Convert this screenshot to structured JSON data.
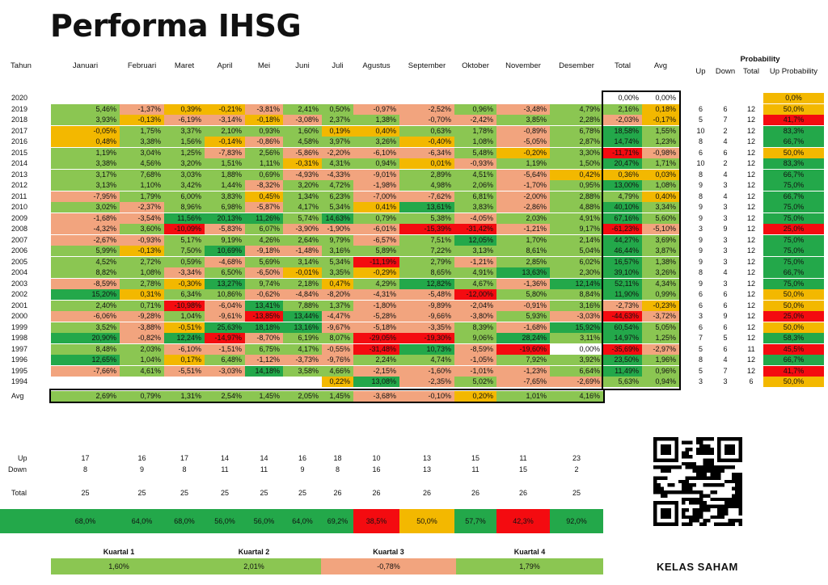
{
  "title": "Performa IHSG",
  "colors": {
    "dg": "#23a84a",
    "lg": "#8bc652",
    "or": "#f3b800",
    "sa": "#f2a47e",
    "rd": "#f40b10",
    "wh": "#ffffff"
  },
  "headers": {
    "year": "Tahun",
    "months": [
      "Januari",
      "Februari",
      "Maret",
      "April",
      "Mei",
      "Juni",
      "Juli",
      "Agustus",
      "September",
      "Oktober",
      "November",
      "Desember"
    ],
    "total": "Total",
    "avg": "Avg",
    "probability": "Probability",
    "up": "Up",
    "down": "Down",
    "ptotal": "Total",
    "upprob": "Up Probability"
  },
  "rows": [
    {
      "year": "2020",
      "m": [
        "",
        "",
        "",
        "",
        "",
        "",
        "",
        "",
        "",
        "",
        "",
        ""
      ],
      "c": [
        "",
        "",
        "",
        "",
        "",
        "",
        "",
        "",
        "",
        "",
        "",
        ""
      ],
      "total": "0,00%",
      "tc": "wh",
      "avg": "0,00%",
      "ac": "wh",
      "up": "",
      "down": "",
      "pt": "",
      "prob": "0,0%",
      "pc": "or"
    },
    {
      "year": "2019",
      "m": [
        "5,46%",
        "-1,37%",
        "0,39%",
        "-0,21%",
        "-3,81%",
        "2,41%",
        "0,50%",
        "-0,97%",
        "-2,52%",
        "0,96%",
        "-3,48%",
        "4,79%"
      ],
      "c": [
        "lg",
        "sa",
        "or",
        "or",
        "sa",
        "lg",
        "lg",
        "sa",
        "sa",
        "lg",
        "sa",
        "lg"
      ],
      "total": "2,16%",
      "tc": "lg",
      "avg": "0,18%",
      "ac": "or",
      "up": "6",
      "down": "6",
      "pt": "12",
      "prob": "50,0%",
      "pc": "or"
    },
    {
      "year": "2018",
      "m": [
        "3,93%",
        "-0,13%",
        "-6,19%",
        "-3,14%",
        "-0,18%",
        "-3,08%",
        "2,37%",
        "1,38%",
        "-0,70%",
        "-2,42%",
        "3,85%",
        "2,28%"
      ],
      "c": [
        "lg",
        "or",
        "sa",
        "sa",
        "or",
        "sa",
        "lg",
        "lg",
        "sa",
        "sa",
        "lg",
        "lg"
      ],
      "total": "-2,03%",
      "tc": "sa",
      "avg": "-0,17%",
      "ac": "or",
      "up": "5",
      "down": "7",
      "pt": "12",
      "prob": "41,7%",
      "pc": "rd"
    },
    {
      "year": "2017",
      "m": [
        "-0,05%",
        "1,75%",
        "3,37%",
        "2,10%",
        "0,93%",
        "1,60%",
        "0,19%",
        "0,40%",
        "0,63%",
        "1,78%",
        "-0,89%",
        "6,78%"
      ],
      "c": [
        "or",
        "lg",
        "lg",
        "lg",
        "lg",
        "lg",
        "or",
        "or",
        "lg",
        "lg",
        "sa",
        "lg"
      ],
      "total": "18,58%",
      "tc": "dg",
      "avg": "1,55%",
      "ac": "lg",
      "up": "10",
      "down": "2",
      "pt": "12",
      "prob": "83,3%",
      "pc": "dg"
    },
    {
      "year": "2016",
      "m": [
        "0,48%",
        "3,38%",
        "1,56%",
        "-0,14%",
        "-0,86%",
        "4,58%",
        "3,97%",
        "3,26%",
        "-0,40%",
        "1,08%",
        "-5,05%",
        "2,87%"
      ],
      "c": [
        "or",
        "lg",
        "lg",
        "or",
        "sa",
        "lg",
        "lg",
        "lg",
        "or",
        "lg",
        "sa",
        "lg"
      ],
      "total": "14,74%",
      "tc": "dg",
      "avg": "1,23%",
      "ac": "lg",
      "up": "8",
      "down": "4",
      "pt": "12",
      "prob": "66,7%",
      "pc": "dg"
    },
    {
      "year": "2015",
      "m": [
        "1,19%",
        "3,04%",
        "1,25%",
        "-7,83%",
        "2,56%",
        "-5,86%",
        "-2,20%",
        "-6,10%",
        "-6,34%",
        "5,48%",
        "-0,20%",
        "3,30%"
      ],
      "c": [
        "lg",
        "lg",
        "lg",
        "sa",
        "lg",
        "sa",
        "sa",
        "sa",
        "sa",
        "lg",
        "or",
        "lg"
      ],
      "total": "-11,71%",
      "tc": "rd",
      "avg": "-0,98%",
      "ac": "sa",
      "up": "6",
      "down": "6",
      "pt": "12",
      "prob": "50,0%",
      "pc": "or"
    },
    {
      "year": "2014",
      "m": [
        "3,38%",
        "4,56%",
        "3,20%",
        "1,51%",
        "1,11%",
        "-0,31%",
        "4,31%",
        "0,94%",
        "0,01%",
        "-0,93%",
        "1,19%",
        "1,50%"
      ],
      "c": [
        "lg",
        "lg",
        "lg",
        "lg",
        "lg",
        "or",
        "lg",
        "lg",
        "or",
        "sa",
        "lg",
        "lg"
      ],
      "total": "20,47%",
      "tc": "dg",
      "avg": "1,71%",
      "ac": "lg",
      "up": "10",
      "down": "2",
      "pt": "12",
      "prob": "83,3%",
      "pc": "dg"
    },
    {
      "year": "2013",
      "m": [
        "3,17%",
        "7,68%",
        "3,03%",
        "1,88%",
        "0,69%",
        "-4,93%",
        "-4,33%",
        "-9,01%",
        "2,89%",
        "4,51%",
        "-5,64%",
        "0,42%"
      ],
      "c": [
        "lg",
        "lg",
        "lg",
        "lg",
        "lg",
        "sa",
        "sa",
        "sa",
        "lg",
        "lg",
        "sa",
        "or"
      ],
      "total": "0,36%",
      "tc": "or",
      "avg": "0,03%",
      "ac": "or",
      "up": "8",
      "down": "4",
      "pt": "12",
      "prob": "66,7%",
      "pc": "dg"
    },
    {
      "year": "2012",
      "m": [
        "3,13%",
        "1,10%",
        "3,42%",
        "1,44%",
        "-8,32%",
        "3,20%",
        "4,72%",
        "-1,98%",
        "4,98%",
        "2,06%",
        "-1,70%",
        "0,95%"
      ],
      "c": [
        "lg",
        "lg",
        "lg",
        "lg",
        "sa",
        "lg",
        "lg",
        "sa",
        "lg",
        "lg",
        "sa",
        "lg"
      ],
      "total": "13,00%",
      "tc": "dg",
      "avg": "1,08%",
      "ac": "lg",
      "up": "9",
      "down": "3",
      "pt": "12",
      "prob": "75,0%",
      "pc": "dg"
    },
    {
      "year": "2011",
      "m": [
        "-7,95%",
        "1,79%",
        "6,00%",
        "3,83%",
        "0,45%",
        "1,34%",
        "6,23%",
        "-7,00%",
        "-7,62%",
        "6,81%",
        "-2,00%",
        "2,88%"
      ],
      "c": [
        "sa",
        "lg",
        "lg",
        "lg",
        "or",
        "lg",
        "lg",
        "sa",
        "sa",
        "lg",
        "sa",
        "lg"
      ],
      "total": "4,79%",
      "tc": "lg",
      "avg": "0,40%",
      "ac": "or",
      "up": "8",
      "down": "4",
      "pt": "12",
      "prob": "66,7%",
      "pc": "dg"
    },
    {
      "year": "2010",
      "m": [
        "3,02%",
        "-2,37%",
        "8,96%",
        "6,98%",
        "-5,87%",
        "4,17%",
        "5,34%",
        "0,41%",
        "13,61%",
        "3,83%",
        "-2,86%",
        "4,88%"
      ],
      "c": [
        "lg",
        "sa",
        "lg",
        "lg",
        "sa",
        "lg",
        "lg",
        "or",
        "dg",
        "lg",
        "sa",
        "lg"
      ],
      "total": "40,10%",
      "tc": "dg",
      "avg": "3,34%",
      "ac": "lg",
      "up": "9",
      "down": "3",
      "pt": "12",
      "prob": "75,0%",
      "pc": "dg"
    },
    {
      "year": "2009",
      "m": [
        "-1,68%",
        "-3,54%",
        "11,56%",
        "20,13%",
        "11,26%",
        "5,74%",
        "14,63%",
        "0,79%",
        "5,38%",
        "-4,05%",
        "2,03%",
        "4,91%"
      ],
      "c": [
        "sa",
        "sa",
        "dg",
        "dg",
        "dg",
        "lg",
        "dg",
        "lg",
        "lg",
        "sa",
        "lg",
        "lg"
      ],
      "total": "67,16%",
      "tc": "dg",
      "avg": "5,60%",
      "ac": "lg",
      "up": "9",
      "down": "3",
      "pt": "12",
      "prob": "75,0%",
      "pc": "dg"
    },
    {
      "year": "2008",
      "m": [
        "-4,32%",
        "3,60%",
        "-10,09%",
        "-5,83%",
        "6,07%",
        "-3,90%",
        "-1,90%",
        "-6,01%",
        "-15,39%",
        "-31,42%",
        "-1,21%",
        "9,17%"
      ],
      "c": [
        "sa",
        "lg",
        "rd",
        "sa",
        "lg",
        "sa",
        "sa",
        "sa",
        "rd",
        "rd",
        "sa",
        "lg"
      ],
      "total": "-61,23%",
      "tc": "rd",
      "avg": "-5,10%",
      "ac": "sa",
      "up": "3",
      "down": "9",
      "pt": "12",
      "prob": "25,0%",
      "pc": "rd"
    },
    {
      "year": "2007",
      "m": [
        "-2,67%",
        "-0,93%",
        "5,17%",
        "9,19%",
        "4,26%",
        "2,64%",
        "9,79%",
        "-6,57%",
        "7,51%",
        "12,05%",
        "1,70%",
        "2,14%"
      ],
      "c": [
        "sa",
        "sa",
        "lg",
        "lg",
        "lg",
        "lg",
        "lg",
        "sa",
        "lg",
        "dg",
        "lg",
        "lg"
      ],
      "total": "44,27%",
      "tc": "dg",
      "avg": "3,69%",
      "ac": "lg",
      "up": "9",
      "down": "3",
      "pt": "12",
      "prob": "75,0%",
      "pc": "dg"
    },
    {
      "year": "2006",
      "m": [
        "5,99%",
        "-0,13%",
        "7,50%",
        "10,69%",
        "-9,18%",
        "-1,48%",
        "3,16%",
        "5,89%",
        "7,22%",
        "3,13%",
        "8,61%",
        "5,04%"
      ],
      "c": [
        "lg",
        "or",
        "lg",
        "dg",
        "sa",
        "sa",
        "lg",
        "lg",
        "lg",
        "lg",
        "lg",
        "lg"
      ],
      "total": "46,44%",
      "tc": "dg",
      "avg": "3,87%",
      "ac": "lg",
      "up": "9",
      "down": "3",
      "pt": "12",
      "prob": "75,0%",
      "pc": "dg"
    },
    {
      "year": "2005",
      "m": [
        "4,52%",
        "2,72%",
        "0,59%",
        "-4,68%",
        "5,69%",
        "3,14%",
        "5,34%",
        "-11,19%",
        "2,79%",
        "-1,21%",
        "2,85%",
        "6,02%"
      ],
      "c": [
        "lg",
        "lg",
        "lg",
        "sa",
        "lg",
        "lg",
        "lg",
        "rd",
        "lg",
        "sa",
        "lg",
        "lg"
      ],
      "total": "16,57%",
      "tc": "dg",
      "avg": "1,38%",
      "ac": "lg",
      "up": "9",
      "down": "3",
      "pt": "12",
      "prob": "75,0%",
      "pc": "dg"
    },
    {
      "year": "2004",
      "m": [
        "8,82%",
        "1,08%",
        "-3,34%",
        "6,50%",
        "-6,50%",
        "-0,01%",
        "3,35%",
        "-0,29%",
        "8,65%",
        "4,91%",
        "13,63%",
        "2,30%"
      ],
      "c": [
        "lg",
        "lg",
        "sa",
        "lg",
        "sa",
        "or",
        "lg",
        "or",
        "lg",
        "lg",
        "dg",
        "lg"
      ],
      "total": "39,10%",
      "tc": "dg",
      "avg": "3,26%",
      "ac": "lg",
      "up": "8",
      "down": "4",
      "pt": "12",
      "prob": "66,7%",
      "pc": "dg"
    },
    {
      "year": "2003",
      "m": [
        "-8,59%",
        "2,78%",
        "-0,30%",
        "13,27%",
        "9,74%",
        "2,18%",
        "0,47%",
        "4,29%",
        "12,82%",
        "4,67%",
        "-1,36%",
        "12,14%"
      ],
      "c": [
        "sa",
        "lg",
        "or",
        "dg",
        "lg",
        "lg",
        "or",
        "lg",
        "dg",
        "lg",
        "sa",
        "dg"
      ],
      "total": "52,11%",
      "tc": "dg",
      "avg": "4,34%",
      "ac": "lg",
      "up": "9",
      "down": "3",
      "pt": "12",
      "prob": "75,0%",
      "pc": "dg"
    },
    {
      "year": "2002",
      "m": [
        "15,20%",
        "0,31%",
        "6,34%",
        "10,86%",
        "-0,62%",
        "-4,84%",
        "-8,20%",
        "-4,31%",
        "-5,48%",
        "-12,00%",
        "5,80%",
        "8,84%"
      ],
      "c": [
        "dg",
        "or",
        "lg",
        "lg",
        "sa",
        "sa",
        "sa",
        "sa",
        "sa",
        "rd",
        "lg",
        "lg"
      ],
      "total": "11,90%",
      "tc": "dg",
      "avg": "0,99%",
      "ac": "lg",
      "up": "6",
      "down": "6",
      "pt": "12",
      "prob": "50,0%",
      "pc": "or"
    },
    {
      "year": "2001",
      "m": [
        "2,40%",
        "0,71%",
        "-10,98%",
        "-6,04%",
        "13,41%",
        "7,88%",
        "1,37%",
        "-1,80%",
        "-9,89%",
        "-2,04%",
        "-0,91%",
        "3,16%"
      ],
      "c": [
        "lg",
        "lg",
        "rd",
        "sa",
        "dg",
        "lg",
        "lg",
        "sa",
        "sa",
        "sa",
        "sa",
        "lg"
      ],
      "total": "-2,73%",
      "tc": "sa",
      "avg": "-0,23%",
      "ac": "or",
      "up": "6",
      "down": "6",
      "pt": "12",
      "prob": "50,0%",
      "pc": "or"
    },
    {
      "year": "2000",
      "m": [
        "-6,06%",
        "-9,28%",
        "1,04%",
        "-9,61%",
        "-13,85%",
        "13,44%",
        "-4,47%",
        "-5,28%",
        "-9,66%",
        "-3,80%",
        "5,93%",
        "-3,03%"
      ],
      "c": [
        "sa",
        "sa",
        "lg",
        "sa",
        "rd",
        "dg",
        "sa",
        "sa",
        "sa",
        "sa",
        "lg",
        "sa"
      ],
      "total": "-44,63%",
      "tc": "rd",
      "avg": "-3,72%",
      "ac": "sa",
      "up": "3",
      "down": "9",
      "pt": "12",
      "prob": "25,0%",
      "pc": "rd"
    },
    {
      "year": "1999",
      "m": [
        "3,52%",
        "-3,88%",
        "-0,51%",
        "25,63%",
        "18,18%",
        "13,16%",
        "-9,67%",
        "-5,18%",
        "-3,35%",
        "8,39%",
        "-1,68%",
        "15,92%"
      ],
      "c": [
        "lg",
        "sa",
        "or",
        "dg",
        "dg",
        "dg",
        "sa",
        "sa",
        "sa",
        "lg",
        "sa",
        "dg"
      ],
      "total": "60,54%",
      "tc": "dg",
      "avg": "5,05%",
      "ac": "lg",
      "up": "6",
      "down": "6",
      "pt": "12",
      "prob": "50,0%",
      "pc": "or"
    },
    {
      "year": "1998",
      "m": [
        "20,90%",
        "-0,82%",
        "12,24%",
        "-14,97%",
        "-8,70%",
        "6,19%",
        "8,07%",
        "-29,05%",
        "-19,30%",
        "9,06%",
        "28,24%",
        "3,11%"
      ],
      "c": [
        "dg",
        "sa",
        "dg",
        "rd",
        "sa",
        "lg",
        "lg",
        "rd",
        "rd",
        "lg",
        "dg",
        "lg"
      ],
      "total": "14,97%",
      "tc": "dg",
      "avg": "1,25%",
      "ac": "lg",
      "up": "7",
      "down": "5",
      "pt": "12",
      "prob": "58,3%",
      "pc": "dg"
    },
    {
      "year": "1997",
      "m": [
        "8,48%",
        "2,03%",
        "-6,10%",
        "-1,51%",
        "6,75%",
        "4,17%",
        "-0,55%",
        "-31,48%",
        "10,73%",
        "-8,59%",
        "-19,60%",
        "0,00%"
      ],
      "c": [
        "lg",
        "lg",
        "sa",
        "sa",
        "lg",
        "lg",
        "sa",
        "rd",
        "dg",
        "sa",
        "rd",
        "wh"
      ],
      "total": "-35,69%",
      "tc": "rd",
      "avg": "-2,97%",
      "ac": "sa",
      "up": "5",
      "down": "6",
      "pt": "11",
      "prob": "45,5%",
      "pc": "rd"
    },
    {
      "year": "1996",
      "m": [
        "12,65%",
        "1,04%",
        "0,17%",
        "6,48%",
        "-1,12%",
        "-3,73%",
        "-9,76%",
        "2,24%",
        "4,74%",
        "-1,05%",
        "7,92%",
        "3,92%"
      ],
      "c": [
        "dg",
        "lg",
        "or",
        "lg",
        "sa",
        "sa",
        "sa",
        "lg",
        "lg",
        "sa",
        "lg",
        "lg"
      ],
      "total": "23,50%",
      "tc": "dg",
      "avg": "1,96%",
      "ac": "lg",
      "up": "8",
      "down": "4",
      "pt": "12",
      "prob": "66,7%",
      "pc": "dg"
    },
    {
      "year": "1995",
      "m": [
        "-7,66%",
        "4,61%",
        "-5,51%",
        "-3,03%",
        "14,18%",
        "3,58%",
        "4,66%",
        "-2,15%",
        "-1,60%",
        "-1,01%",
        "-1,23%",
        "6,64%"
      ],
      "c": [
        "sa",
        "lg",
        "sa",
        "sa",
        "dg",
        "lg",
        "lg",
        "sa",
        "sa",
        "sa",
        "sa",
        "lg"
      ],
      "total": "11,49%",
      "tc": "dg",
      "avg": "0,96%",
      "ac": "lg",
      "up": "5",
      "down": "7",
      "pt": "12",
      "prob": "41,7%",
      "pc": "rd"
    },
    {
      "year": "1994",
      "m": [
        "",
        "",
        "",
        "",
        "",
        "",
        "0,22%",
        "13,08%",
        "-2,35%",
        "5,02%",
        "-7,65%",
        "-2,69%"
      ],
      "c": [
        "",
        "",
        "",
        "",
        "",
        "",
        "or",
        "dg",
        "sa",
        "lg",
        "sa",
        "sa"
      ],
      "total": "5,63%",
      "tc": "lg",
      "avg": "0,94%",
      "ac": "lg",
      "up": "3",
      "down": "3",
      "pt": "6",
      "prob": "50,0%",
      "pc": "or"
    }
  ],
  "avgrow": {
    "label": "Avg",
    "m": [
      "2,69%",
      "0,79%",
      "1,31%",
      "2,54%",
      "1,45%",
      "2,05%",
      "1,45%",
      "-3,68%",
      "-0,10%",
      "0,20%",
      "1,01%",
      "4,16%"
    ],
    "c": [
      "lg",
      "lg",
      "lg",
      "lg",
      "lg",
      "lg",
      "lg",
      "sa",
      "sa",
      "or",
      "lg",
      "lg"
    ]
  },
  "summary": {
    "up_label": "Up",
    "down_label": "Down",
    "total_label": "Total",
    "prob_label": "Up Probability",
    "up": [
      "17",
      "16",
      "17",
      "14",
      "14",
      "16",
      "18",
      "10",
      "13",
      "15",
      "11",
      "23"
    ],
    "down": [
      "8",
      "9",
      "8",
      "11",
      "11",
      "9",
      "8",
      "16",
      "13",
      "11",
      "15",
      "2"
    ],
    "total": [
      "25",
      "25",
      "25",
      "25",
      "25",
      "25",
      "26",
      "26",
      "26",
      "26",
      "26",
      "25"
    ],
    "prob": [
      "68,0%",
      "64,0%",
      "68,0%",
      "56,0%",
      "56,0%",
      "64,0%",
      "69,2%",
      "38,5%",
      "50,0%",
      "57,7%",
      "42,3%",
      "92,0%"
    ],
    "prob_c": [
      "dg",
      "dg",
      "dg",
      "dg",
      "dg",
      "dg",
      "dg",
      "rd",
      "or",
      "dg",
      "rd",
      "dg"
    ]
  },
  "quarters": [
    {
      "label": "Kuartal 1",
      "value": "1,60%",
      "c": "lg"
    },
    {
      "label": "Kuartal 2",
      "value": "2,01%",
      "c": "lg"
    },
    {
      "label": "Kuartal 3",
      "value": "-0,78%",
      "c": "sa"
    },
    {
      "label": "Kuartal 4",
      "value": "1,79%",
      "c": "lg"
    }
  ],
  "brand": "KELAS SAHAM",
  "qr_icon": "qr-code-icon"
}
